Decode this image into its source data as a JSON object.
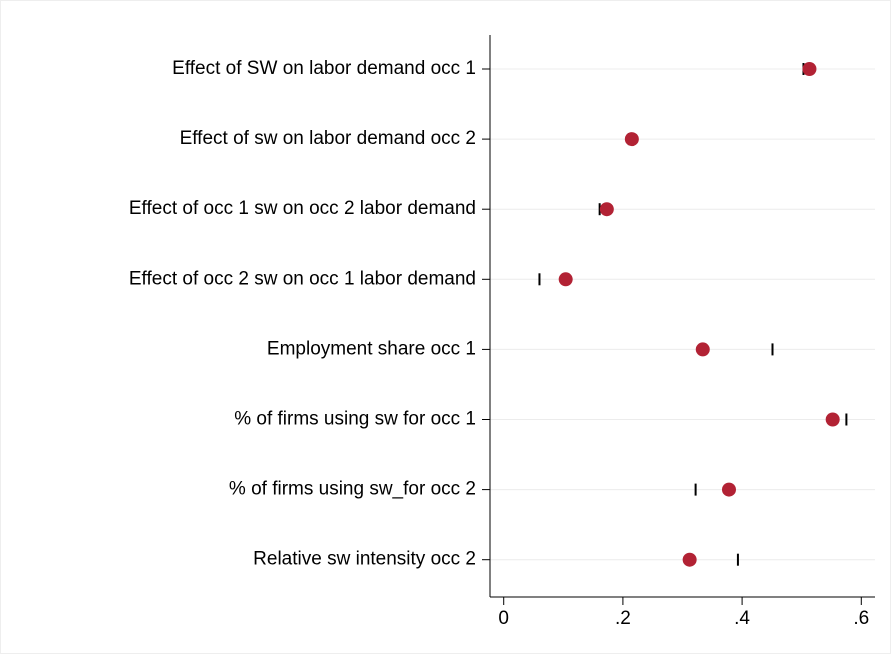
{
  "chart_data": {
    "type": "dot",
    "categories": [
      "Effect of SW on labor demand occ 1",
      "Effect of sw on labor demand occ 2",
      "Effect of occ 1 sw on occ 2 labor demand",
      "Effect of occ 2 sw on occ 1 labor demand",
      "Employment share occ 1",
      "% of firms using sw for occ 1",
      "% of firms using sw_for occ 2",
      "Relative sw intensity occ 2"
    ],
    "series": [
      {
        "color": "#000000",
        "marker": "tick",
        "values": [
          0.503,
          0.21,
          0.161,
          0.06,
          0.451,
          0.575,
          0.322,
          0.393
        ]
      },
      {
        "color": "#b22234",
        "marker": "circle",
        "values": [
          0.513,
          0.215,
          0.173,
          0.104,
          0.334,
          0.552,
          0.378,
          0.312
        ]
      }
    ],
    "xlim": [
      -0.023,
      0.623
    ],
    "xticks": [
      0,
      {
        "value": 0.2,
        "label": ".2"
      },
      {
        "value": 0.4,
        "label": ".4"
      },
      {
        "value": 0.6,
        "label": ".6"
      }
    ],
    "grid": true
  }
}
